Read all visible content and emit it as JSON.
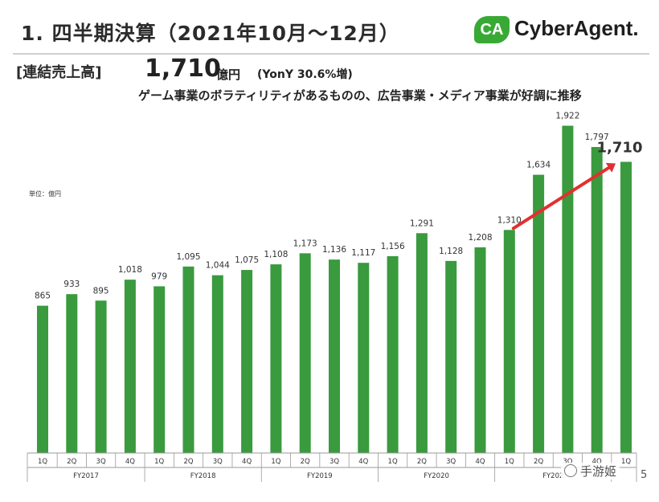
{
  "header": {
    "title": "1. 四半期決算（2021年10月～12月）",
    "logo_mark": "CA",
    "logo_text": "CyberAgent."
  },
  "headline": {
    "label": "[連結売上高]",
    "value": "1,710",
    "unit": "億円",
    "yoy": "(YonY 30.6%増)",
    "subtitle": "ゲーム事業のボラティリティがあるものの、広告事業・メディア事業が好調に推移"
  },
  "page_number_fragment": "5",
  "watermark": "手游姬",
  "colors": {
    "bar": "#3a9a3e",
    "arrow": "#e2302f",
    "axis": "#999999"
  },
  "chart_data": {
    "type": "bar",
    "unit_label": "単位：億円",
    "categories": [
      "1Q",
      "2Q",
      "3Q",
      "4Q",
      "1Q",
      "2Q",
      "3Q",
      "4Q",
      "1Q",
      "2Q",
      "3Q",
      "4Q",
      "1Q",
      "2Q",
      "3Q",
      "4Q",
      "1Q",
      "2Q",
      "3Q",
      "4Q",
      "1Q"
    ],
    "values": [
      865,
      933,
      895,
      1018,
      979,
      1095,
      1044,
      1075,
      1108,
      1173,
      1136,
      1117,
      1156,
      1291,
      1128,
      1208,
      1310,
      1634,
      1922,
      1797,
      1710
    ],
    "value_labels": [
      "865",
      "933",
      "895",
      "1,018",
      "979",
      "1,095",
      "1,044",
      "1,075",
      "1,108",
      "1,173",
      "1,136",
      "1,117",
      "1,156",
      "1,291",
      "1,128",
      "1,208",
      "1,310",
      "1,634",
      "1,922",
      "1,797",
      "1,710"
    ],
    "groups": [
      {
        "label": "FY2017",
        "start": 0,
        "end": 3
      },
      {
        "label": "FY2018",
        "start": 4,
        "end": 7
      },
      {
        "label": "FY2019",
        "start": 8,
        "end": 11
      },
      {
        "label": "FY2020",
        "start": 12,
        "end": 15
      },
      {
        "label": "FY202",
        "start": 16,
        "end": 19
      },
      {
        "label": "",
        "start": 20,
        "end": 20
      }
    ],
    "highlight": {
      "index": 20,
      "label": "1,710"
    },
    "arrow": {
      "from_index": 16,
      "to_index": 20
    },
    "ylim": [
      0,
      2000
    ],
    "grid": false
  }
}
